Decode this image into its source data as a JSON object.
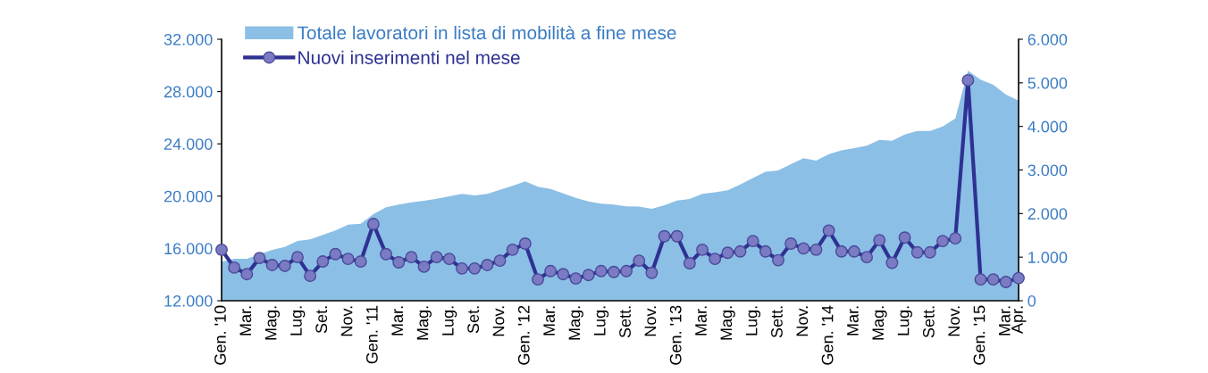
{
  "chart_data": {
    "type": "line",
    "categories": [
      "Gen. '10",
      null,
      "Mar.",
      null,
      "Mag.",
      null,
      "Lug.",
      null,
      "Set.",
      null,
      "Nov.",
      null,
      "Gen. '11",
      null,
      "Mar.",
      null,
      "Mag.",
      null,
      "Lug.",
      null,
      "Set.",
      null,
      "Nov.",
      null,
      "Gen. '12",
      null,
      "Mar.",
      null,
      "Mag.",
      null,
      "Lug.",
      null,
      "Sett.",
      null,
      "Nov.",
      null,
      "Gen. '13",
      null,
      "Mar.",
      null,
      "Mag.",
      null,
      "Lug.",
      null,
      "Sett.",
      null,
      "Nov.",
      null,
      "Gen. '14",
      null,
      "Mar.",
      null,
      "Mag.",
      null,
      "Lug.",
      null,
      "Sett.",
      null,
      "Nov.",
      null,
      "Gen. '15",
      null,
      "Mar.",
      "Apr."
    ],
    "series": [
      {
        "name": "Totale lavoratori in lista di mobilità a fine mese",
        "type": "area",
        "color": "#8bbfe6",
        "values": [
          14980,
          15210,
          15210,
          15550,
          15890,
          16120,
          16570,
          16690,
          17030,
          17370,
          17820,
          17890,
          18620,
          19150,
          19350,
          19530,
          19650,
          19800,
          19990,
          20170,
          20050,
          20170,
          20480,
          20780,
          21130,
          20720,
          20550,
          20210,
          19870,
          19600,
          19420,
          19350,
          19210,
          19200,
          19030,
          19300,
          19670,
          19780,
          20170,
          20290,
          20440,
          20890,
          21390,
          21870,
          21960,
          22440,
          22900,
          22720,
          23210,
          23510,
          23670,
          23860,
          24310,
          24240,
          24720,
          24990,
          24990,
          25330,
          25950,
          29590,
          28910,
          28520,
          27770,
          27310
        ]
      },
      {
        "name": "Nuovi inserimenti nel mese",
        "marker": "circle",
        "axis": "y2",
        "color": "#2e3192",
        "values": [
          1170,
          760,
          610,
          980,
          820,
          800,
          1000,
          570,
          900,
          1070,
          960,
          900,
          1760,
          1070,
          880,
          1000,
          780,
          1000,
          960,
          740,
          740,
          820,
          920,
          1170,
          1310,
          490,
          680,
          610,
          510,
          590,
          680,
          660,
          680,
          920,
          640,
          1480,
          1480,
          860,
          1170,
          960,
          1100,
          1130,
          1370,
          1130,
          930,
          1310,
          1200,
          1170,
          1610,
          1130,
          1130,
          1000,
          1390,
          870,
          1450,
          1110,
          1110,
          1370,
          1430,
          5060,
          490,
          490,
          430,
          520
        ]
      }
    ],
    "ylim": [
      12000,
      32000
    ],
    "yticks": [
      {
        "value": 12000,
        "label": "12.000"
      },
      {
        "value": 16000,
        "label": "16.000"
      },
      {
        "value": 20000,
        "label": "20.000"
      },
      {
        "value": 24000,
        "label": "24.000"
      },
      {
        "value": 28000,
        "label": "28.000"
      },
      {
        "value": 32000,
        "label": "32.000"
      }
    ],
    "y2lim": [
      0,
      6000
    ],
    "y2ticks": [
      0,
      {
        "value": 1000,
        "label": "1.000"
      },
      {
        "value": 2000,
        "label": "2.000"
      },
      {
        "value": 3000,
        "label": "3.000"
      },
      {
        "value": 4000,
        "label": "4.000"
      },
      {
        "value": 5000,
        "label": "5.000"
      },
      {
        "value": 6000,
        "label": "6.000"
      }
    ],
    "line_style": "solid",
    "grid": false,
    "legend": "top left"
  }
}
